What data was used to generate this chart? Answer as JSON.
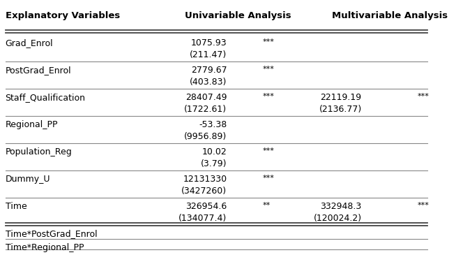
{
  "header": [
    "Explanatory Variables",
    "Univariable Analysis",
    "Multivariable Analysis"
  ],
  "rows": [
    {
      "var": "Grad_Enrol",
      "uni_coef": "1075.93",
      "uni_sig": "***",
      "uni_se": "(211.47)",
      "multi_coef": "",
      "multi_sig": "",
      "multi_se": "",
      "divider_top": true,
      "divider_bottom": false
    },
    {
      "var": "PostGrad_Enrol",
      "uni_coef": "2779.67",
      "uni_sig": "***",
      "uni_se": "(403.83)",
      "multi_coef": "",
      "multi_sig": "",
      "multi_se": "",
      "divider_top": true,
      "divider_bottom": false
    },
    {
      "var": "Staff_Qualification",
      "uni_coef": "28407.49",
      "uni_sig": "***",
      "uni_se": "(1722.61)",
      "multi_coef": "22119.19",
      "multi_sig": "***",
      "multi_se": "(2136.77)",
      "divider_top": true,
      "divider_bottom": false
    },
    {
      "var": "Regional_PP",
      "uni_coef": "-53.38",
      "uni_sig": "",
      "uni_se": "(9956.89)",
      "multi_coef": "",
      "multi_sig": "",
      "multi_se": "",
      "divider_top": true,
      "divider_bottom": false
    },
    {
      "var": "Population_Reg",
      "uni_coef": "10.02",
      "uni_sig": "***",
      "uni_se": "(3.79)",
      "multi_coef": "",
      "multi_sig": "",
      "multi_se": "",
      "divider_top": true,
      "divider_bottom": false
    },
    {
      "var": "Dummy_U",
      "uni_coef": "12131330",
      "uni_sig": "***",
      "uni_se": "(3427260)",
      "multi_coef": "",
      "multi_sig": "",
      "multi_se": "",
      "divider_top": true,
      "divider_bottom": false
    },
    {
      "var": "Time",
      "uni_coef": "326954.6",
      "uni_sig": "**",
      "uni_se": "(134077.4)",
      "multi_coef": "332948.3",
      "multi_sig": "***",
      "multi_se": "(120024.2)",
      "divider_top": true,
      "divider_bottom": true
    },
    {
      "var": "Time*PostGrad_Enrol",
      "uni_coef": "",
      "uni_sig": "",
      "uni_se": "",
      "multi_coef": "",
      "multi_sig": "",
      "multi_se": "",
      "divider_top": false,
      "divider_bottom": false
    },
    {
      "var": "Time*Regional_PP",
      "uni_coef": "",
      "uni_sig": "",
      "uni_se": "",
      "multi_coef": "",
      "multi_sig": "",
      "multi_se": "",
      "divider_top": true,
      "divider_bottom": false
    }
  ],
  "col_x": {
    "var": 0.01,
    "uni_coef": 0.525,
    "uni_sig": 0.608,
    "multi_coef": 0.838,
    "multi_sig": 0.967
  },
  "font_size": 9,
  "header_font_size": 9.5,
  "bg_color": "#ffffff",
  "text_color": "#000000"
}
